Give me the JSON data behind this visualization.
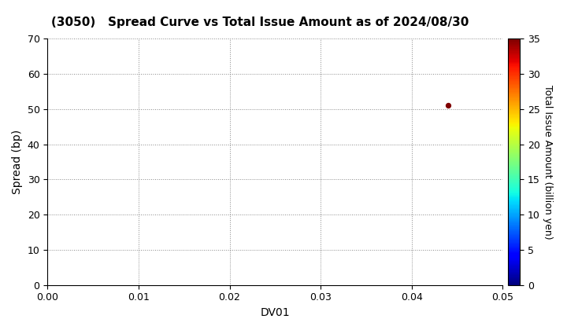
{
  "title": "(3050)   Spread Curve vs Total Issue Amount as of 2024/08/30",
  "xlabel": "DV01",
  "ylabel": "Spread (bp)",
  "colorbar_label": "Total Issue Amount (billion yen)",
  "xlim": [
    0.0,
    0.05
  ],
  "ylim": [
    0,
    70
  ],
  "xticks": [
    0.0,
    0.01,
    0.02,
    0.03,
    0.04,
    0.05
  ],
  "yticks": [
    0,
    10,
    20,
    30,
    40,
    50,
    60,
    70
  ],
  "colorbar_ticks": [
    0,
    5,
    10,
    15,
    20,
    25,
    30,
    35
  ],
  "colorbar_vmin": 0,
  "colorbar_vmax": 35,
  "scatter_x": [
    0.044
  ],
  "scatter_y": [
    51
  ],
  "scatter_values": [
    35
  ],
  "scatter_size": 18,
  "bg_color": "#ffffff",
  "grid_color": "#888888",
  "title_fontsize": 11,
  "axis_fontsize": 10,
  "tick_fontsize": 9,
  "colorbar_fontsize": 9
}
